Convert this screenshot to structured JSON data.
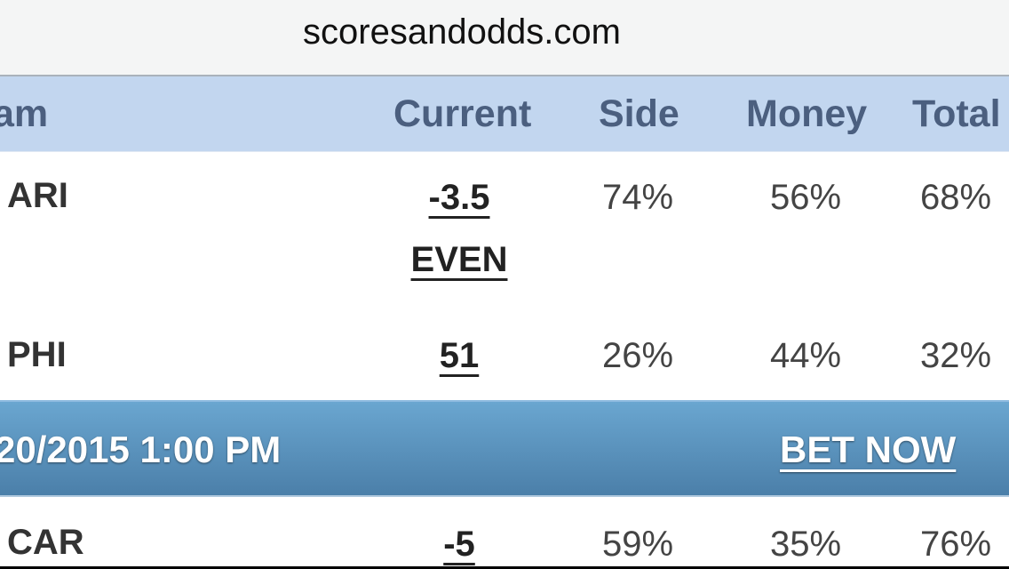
{
  "browser": {
    "url": "scoresandodds.com"
  },
  "table_header": {
    "team": "am",
    "current": "Current",
    "side": "Side",
    "money": "Money",
    "total": "Total"
  },
  "game1": {
    "rows": [
      {
        "team": "ARI",
        "current": "-3.5",
        "current2": "EVEN",
        "side": "74%",
        "money": "56%",
        "total": "68%"
      },
      {
        "team": "PHI",
        "current": "51",
        "side": "26%",
        "money": "44%",
        "total": "32%"
      }
    ]
  },
  "game2": {
    "datetime": "20/2015 1:00 PM",
    "bet_now": "BET NOW",
    "rows": [
      {
        "team": "CAR",
        "current": "-5",
        "side": "59%",
        "money": "35%",
        "total": "76%"
      }
    ]
  },
  "colors": {
    "header_bg": "#c2d6ef",
    "header_text": "#4b5f7f",
    "game_bar_top": "#6aa6d0",
    "game_bar_bottom": "#4b7fa9"
  }
}
